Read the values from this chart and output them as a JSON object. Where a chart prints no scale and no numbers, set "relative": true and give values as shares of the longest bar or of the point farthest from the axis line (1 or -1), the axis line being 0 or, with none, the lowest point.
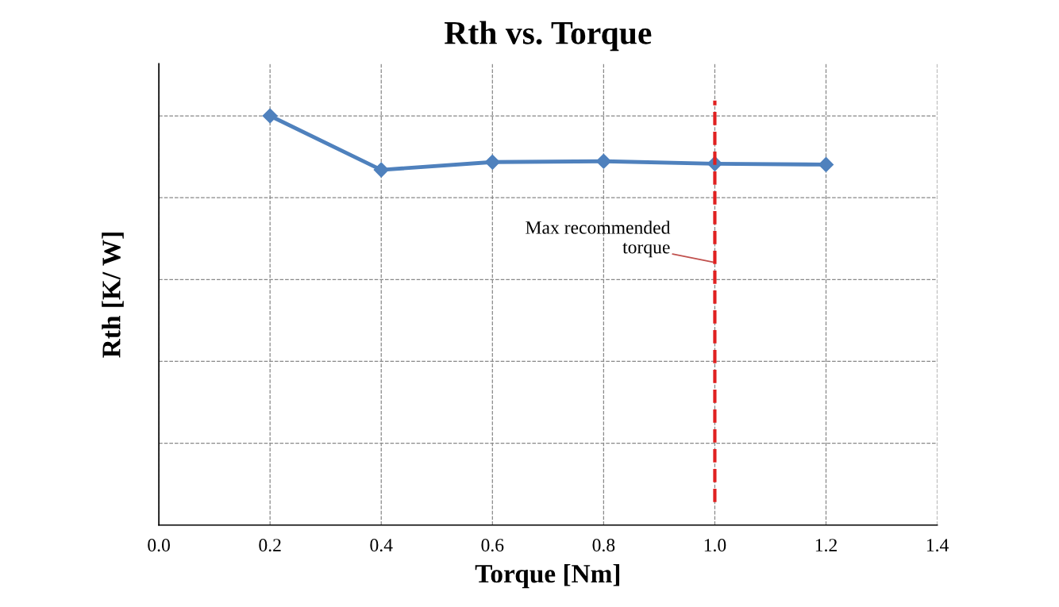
{
  "chart_data": {
    "type": "line",
    "title": "Rth vs. Torque",
    "xlabel": "Torque [Nm]",
    "ylabel": "Rth [K/ W]",
    "x": [
      0.2,
      0.4,
      0.6,
      0.8,
      1.0,
      1.2
    ],
    "series": [
      {
        "color": "#4f81bd",
        "values": [
          1,
          0.868,
          0.887,
          0.889,
          0.883,
          0.881
        ]
      }
    ],
    "relative": true,
    "xlim": [
      0.0,
      1.4
    ],
    "xticks": [
      {
        "value": 0.0,
        "label": "0.0"
      },
      {
        "value": 0.2,
        "label": "0.2"
      },
      {
        "value": 0.4,
        "label": "0.4"
      },
      {
        "value": 0.6,
        "label": "0.6"
      },
      {
        "value": 0.8,
        "label": "0.8"
      },
      {
        "value": 1.0,
        "label": "1.0"
      },
      {
        "value": 1.2,
        "label": "1.2"
      },
      {
        "value": 1.4,
        "label": "1.4"
      }
    ],
    "ref_lines": [
      {
        "axis": "x",
        "value": 1.0,
        "label": "Max recommended\ntorque",
        "color": "#e02020",
        "line_style": "dashed"
      }
    ],
    "tick_labels": "x",
    "grid": true,
    "marker": "diamond",
    "line_style": "solid"
  }
}
